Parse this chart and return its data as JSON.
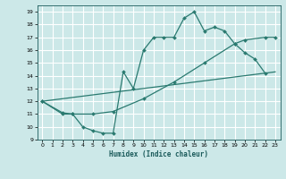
{
  "xlabel": "Humidex (Indice chaleur)",
  "bg_color": "#cce8e8",
  "grid_color": "#b0d8d8",
  "line_color": "#2a7a70",
  "xlim": [
    -0.5,
    23.5
  ],
  "ylim": [
    9,
    19.5
  ],
  "yticks": [
    9,
    10,
    11,
    12,
    13,
    14,
    15,
    16,
    17,
    18,
    19
  ],
  "xticks": [
    0,
    1,
    2,
    3,
    4,
    5,
    6,
    7,
    8,
    9,
    10,
    11,
    12,
    13,
    14,
    15,
    16,
    17,
    18,
    19,
    20,
    21,
    22,
    23
  ],
  "curve1_x": [
    0,
    2,
    3,
    4,
    5,
    6,
    7,
    8,
    9,
    10,
    11,
    12,
    13,
    14,
    15,
    16,
    17,
    18,
    19,
    20,
    21,
    22
  ],
  "curve1_y": [
    12,
    11,
    11,
    10,
    9.7,
    9.5,
    9.5,
    14.3,
    13.0,
    16.0,
    17.0,
    17.0,
    17.0,
    18.5,
    19.0,
    17.5,
    17.8,
    17.5,
    16.5,
    15.8,
    15.3,
    14.2
  ],
  "curve2_x": [
    0,
    2,
    3,
    5,
    7,
    10,
    13,
    16,
    19,
    20,
    22,
    23
  ],
  "curve2_y": [
    12,
    11.1,
    11.0,
    11.0,
    11.2,
    12.2,
    13.5,
    15.0,
    16.5,
    16.8,
    17.0,
    17.0
  ],
  "curve3_x": [
    0,
    23
  ],
  "curve3_y": [
    12.0,
    14.3
  ]
}
